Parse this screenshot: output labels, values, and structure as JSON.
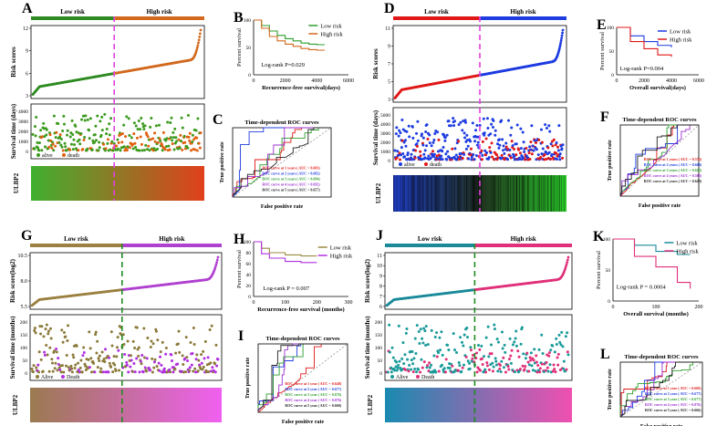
{
  "panels": {
    "A": {
      "letter": "A",
      "low": "Low risk",
      "high": "High risk",
      "ylabel_risk": "Risk scores",
      "ylabel_surv": "Survival time (days)",
      "yticks_risk": [
        "3",
        "6",
        "9",
        "12"
      ],
      "yticks_surv": [
        "0",
        "1000",
        "2000",
        "3000",
        "4000"
      ],
      "legend_alive": "alive",
      "legend_death": "death",
      "gene": "ULBP2"
    },
    "B": {
      "letter": "B",
      "legend": [
        "Low risk",
        "High risk"
      ],
      "ylabel": "Percent survival",
      "xlabel": "Recurrence-free survival(days)",
      "xticks": [
        "0",
        "2000",
        "4000",
        "6000"
      ],
      "yticks": [
        "0",
        "50",
        "100"
      ],
      "pvalue": "Log-rank P=0.029"
    },
    "C": {
      "letter": "C",
      "title": "Time-dependent ROC curves",
      "xlabel": "False positive rate",
      "ylabel": "True positive rate",
      "legend": [
        "ROC curve at 1 years ( AUC = 0.683)",
        "ROC curve at 2 years ( AUC = 0.682)",
        "ROC curve at 3 years ( AUC = 0.694)",
        "ROC curve at 4 years ( AUC = 0.692)",
        "ROC curve at 5 years ( AUC = 0.657)"
      ]
    },
    "D": {
      "letter": "D",
      "low": "Low risk",
      "high": "High risk",
      "ylabel_risk": "Risk scores",
      "ylabel_surv": "Survival time (days)",
      "yticks_risk": [
        "3",
        "5",
        "7",
        "9",
        "11"
      ],
      "yticks_surv": [
        "0",
        "1000",
        "2000",
        "3000",
        "4000",
        "5000"
      ],
      "legend_alive": "alive",
      "legend_death": "death",
      "gene": "ULBP2"
    },
    "E": {
      "letter": "E",
      "legend": [
        "Low risk",
        "High risk"
      ],
      "ylabel": "Percent survival",
      "xlabel": "Overall survival(days)",
      "xticks": [
        "0",
        "2000",
        "4000",
        "6000"
      ],
      "yticks": [
        "0",
        "50",
        "100"
      ],
      "pvalue": "Log-rank P=0.004"
    },
    "F": {
      "letter": "F",
      "title": "Time-dependent ROC curves",
      "xlabel": "False positive rate",
      "ylabel": "True positive rate",
      "legend": [
        "ROC curve at 1 years ( AUC = 0.576)",
        "ROC curve at 2 years ( AUC = 0.609)",
        "ROC curve at 3 years ( AUC = 0.620)",
        "ROC curve at 4 years ( AUC = 0.588)",
        "ROC curve at 5 years ( AUC = 0.628)"
      ]
    },
    "G": {
      "letter": "G",
      "low": "Low risk",
      "high": "High risk",
      "ylabel_risk": "Risk score(log2)",
      "ylabel_surv": "Survival time (months)",
      "yticks_risk": [
        "5.5",
        "8.0",
        "10.5"
      ],
      "yticks_surv": [
        "0",
        "50",
        "100",
        "150",
        "200"
      ],
      "legend_alive": "Alive",
      "legend_death": "Death",
      "gene": "ULBP2"
    },
    "H": {
      "letter": "H",
      "legend": [
        "Low risk",
        "High risk"
      ],
      "ylabel": "Percent survival",
      "xlabel": "Recurrence-free survival (months)",
      "xticks": [
        "0",
        "100",
        "200",
        "300"
      ],
      "yticks": [
        "0",
        "20",
        "40",
        "60",
        "80",
        "100"
      ],
      "pvalue": "Log-rank P = 0.007"
    },
    "I": {
      "letter": "I",
      "title": "Time-dependent ROC curves",
      "xlabel": "False positive rate",
      "ylabel": "True positive rate",
      "legend": [
        "ROC curve at 1 year ( AUC = 0.648)",
        "ROC curve at 2 year ( AUC = 0.677)",
        "ROC curve at 3 year ( AUC = 0.676)",
        "ROC curve at 4 year ( AUC = 0.876)",
        "ROC curve at 5 year ( AUC = 0.668)"
      ]
    },
    "J": {
      "letter": "J",
      "low": "Low risk",
      "high": "High risk",
      "ylabel_risk": "Risk score(log2)",
      "ylabel_surv": "Survival time (months)",
      "yticks_risk": [
        "6",
        "7",
        "8",
        "9",
        "10",
        "11"
      ],
      "yticks_surv": [
        "0",
        "50",
        "100",
        "150",
        "200"
      ],
      "legend_alive": "Alive",
      "legend_death": "Death",
      "gene": "ULBP2"
    },
    "K": {
      "letter": "K",
      "legend": [
        "Low risk",
        "High risk"
      ],
      "ylabel": "Percent survival",
      "xlabel": "Overall survival (months)",
      "xticks": [
        "0",
        "100",
        "200"
      ],
      "yticks": [
        "0",
        "50",
        "100"
      ],
      "pvalue": "Log-rank P = 0.0004"
    },
    "L": {
      "letter": "L",
      "title": "Time-dependent ROC curves",
      "xlabel": "False positive rate",
      "ylabel": "True positive rate",
      "legend": [
        "ROC curve at 1 year ( AUC = 0.668)",
        "ROC curve at 2 year ( AUC = 0.677)",
        "ROC curve at 3 year ( AUC = 0.677)",
        "ROC curve at 4 year ( AUC = 0.876)",
        "ROC curve at 5 year ( AUC = 0.666)"
      ]
    }
  },
  "colors": {
    "A": {
      "low": "#2e8b22",
      "high": "#d2691e",
      "divider": "#e040e0",
      "alive": "#3c9a1e",
      "death": "#e06010",
      "heat_low": "#40b030",
      "heat_high": "#e0401c"
    },
    "D": {
      "low": "#e01818",
      "high": "#1e3ce0",
      "divider": "#e040e0",
      "alive": "#1e3ce0",
      "death": "#e01818",
      "heat_low": "#1e3cc0",
      "heat_mid": "#203020",
      "heat_high": "#28c828"
    },
    "G": {
      "low": "#9b8040",
      "high": "#b040d0",
      "divider": "#228b22",
      "alive": "#8b7a3a",
      "death": "#b030e0",
      "heat_low": "#9b7a50",
      "heat_high": "#f060f0"
    },
    "J": {
      "low": "#1a8a9a",
      "high": "#e0307a",
      "divider": "#228b22",
      "alive": "#1a9a9a",
      "death": "#e0307a",
      "heat_low": "#1a8ab0",
      "heat_high": "#f050b0"
    },
    "B": {
      "low": "#2e9e2e",
      "high": "#d2691e"
    },
    "E": {
      "low": "#1e3ce0",
      "high": "#e01818"
    },
    "H": {
      "low": "#9b8a40",
      "high": "#b030e0"
    },
    "K": {
      "low": "#1a8a9a",
      "high": "#e0307a"
    },
    "roc": [
      "#e01818",
      "#1e3ce0",
      "#2e9e2e",
      "#9b30d0",
      "#222222"
    ]
  },
  "chart_data": [
    {
      "type": "scatter",
      "panel": "A",
      "x_label": "",
      "y_label": "Risk scores",
      "ylim": [
        3,
        12
      ],
      "n": 300,
      "values_sorted_range": [
        3.5,
        11.8
      ]
    },
    {
      "type": "line",
      "panel": "B",
      "series": [
        {
          "name": "Low risk",
          "x": [
            0,
            500,
            1000,
            1500,
            2000,
            2500,
            3000,
            3500,
            4000,
            4500
          ],
          "y": [
            100,
            90,
            80,
            72,
            66,
            62,
            58,
            56,
            55,
            55
          ]
        },
        {
          "name": "High risk",
          "x": [
            0,
            500,
            1000,
            1500,
            2000,
            2500,
            3000,
            3500,
            4000,
            4500
          ],
          "y": [
            100,
            85,
            70,
            62,
            56,
            52,
            48,
            46,
            45,
            45
          ]
        }
      ],
      "xlim": [
        0,
        6000
      ],
      "ylim": [
        0,
        100
      ]
    },
    {
      "type": "line",
      "panel": "C",
      "series": [
        {
          "name": "ROC curve at 1 years ( AUC = 0.683)"
        },
        {
          "name": "ROC curve at 2 years ( AUC = 0.682)"
        },
        {
          "name": "ROC curve at 3 years ( AUC = 0.694)"
        },
        {
          "name": "ROC curve at 4 years ( AUC = 0.692)"
        },
        {
          "name": "ROC curve at 5 years ( AUC = 0.657)"
        }
      ],
      "xlim": [
        0,
        1
      ],
      "ylim": [
        0,
        1
      ]
    },
    {
      "type": "scatter",
      "panel": "D",
      "y_label": "Risk scores",
      "ylim": [
        3,
        12
      ],
      "n": 400,
      "values_sorted_range": [
        3.2,
        12
      ]
    },
    {
      "type": "line",
      "panel": "E",
      "series": [
        {
          "name": "Low risk",
          "x": [
            0,
            1000,
            2000,
            3000,
            4000
          ],
          "y": [
            100,
            82,
            70,
            62,
            58
          ]
        },
        {
          "name": "High risk",
          "x": [
            0,
            1000,
            2000,
            3000,
            4000
          ],
          "y": [
            100,
            70,
            55,
            42,
            38
          ]
        }
      ],
      "xlim": [
        0,
        6000
      ],
      "ylim": [
        0,
        100
      ]
    },
    {
      "type": "line",
      "panel": "F",
      "series": [
        {
          "name": "ROC curve at 1 years ( AUC = 0.576)"
        },
        {
          "name": "ROC curve at 2 years ( AUC = 0.609)"
        },
        {
          "name": "ROC curve at 3 years ( AUC = 0.620)"
        },
        {
          "name": "ROC curve at 4 years ( AUC = 0.588)"
        },
        {
          "name": "ROC curve at 5 years ( AUC = 0.628)"
        }
      ],
      "xlim": [
        0,
        1
      ],
      "ylim": [
        0,
        1
      ]
    },
    {
      "type": "scatter",
      "panel": "G",
      "y_label": "Risk score(log2)",
      "ylim": [
        5.5,
        10.5
      ],
      "n": 300,
      "values_sorted_range": [
        5.6,
        10.4
      ]
    },
    {
      "type": "line",
      "panel": "H",
      "series": [
        {
          "name": "Low risk",
          "x": [
            0,
            25,
            50,
            100,
            150,
            200
          ],
          "y": [
            100,
            88,
            80,
            76,
            74,
            74
          ]
        },
        {
          "name": "High risk",
          "x": [
            0,
            25,
            50,
            100,
            150,
            200
          ],
          "y": [
            100,
            78,
            70,
            64,
            62,
            62
          ]
        }
      ],
      "xlim": [
        0,
        300
      ],
      "ylim": [
        0,
        100
      ]
    },
    {
      "type": "line",
      "panel": "I",
      "series": [
        {
          "name": "ROC curve at 1 year ( AUC = 0.648)"
        },
        {
          "name": "ROC curve at 2 year ( AUC = 0.677)"
        },
        {
          "name": "ROC curve at 3 year ( AUC = 0.676)"
        },
        {
          "name": "ROC curve at 4 year ( AUC = 0.876)"
        },
        {
          "name": "ROC curve at 5 year ( AUC = 0.668)"
        }
      ],
      "xlim": [
        0,
        1
      ],
      "ylim": [
        0,
        1
      ]
    },
    {
      "type": "scatter",
      "panel": "J",
      "y_label": "Risk score(log2)",
      "ylim": [
        6,
        11
      ],
      "n": 300,
      "values_sorted_range": [
        6.1,
        10.9
      ]
    },
    {
      "type": "line",
      "panel": "K",
      "series": [
        {
          "name": "Low risk",
          "x": [
            0,
            50,
            100,
            150,
            180
          ],
          "y": [
            100,
            90,
            80,
            75,
            75
          ]
        },
        {
          "name": "High risk",
          "x": [
            0,
            50,
            100,
            150,
            180
          ],
          "y": [
            100,
            72,
            55,
            30,
            20
          ]
        }
      ],
      "xlim": [
        0,
        200
      ],
      "ylim": [
        0,
        100
      ]
    },
    {
      "type": "line",
      "panel": "L",
      "series": [
        {
          "name": "ROC curve at 1 year ( AUC = 0.668)"
        },
        {
          "name": "ROC curve at 2 year ( AUC = 0.677)"
        },
        {
          "name": "ROC curve at 3 year ( AUC = 0.677)"
        },
        {
          "name": "ROC curve at 4 year ( AUC = 0.876)"
        },
        {
          "name": "ROC curve at 5 year ( AUC = 0.666)"
        }
      ],
      "xlim": [
        0,
        1
      ],
      "ylim": [
        0,
        1
      ]
    }
  ]
}
